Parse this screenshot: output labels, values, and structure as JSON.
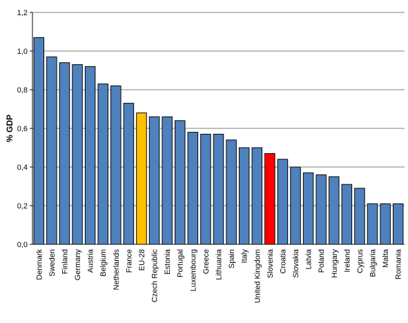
{
  "chart_data": {
    "type": "bar",
    "title": "",
    "xlabel": "",
    "ylabel": "% GDP",
    "ylim": [
      0,
      1.2
    ],
    "yticks": [
      "0,0",
      "0,2",
      "0,4",
      "0,6",
      "0,8",
      "1,0",
      "1,2"
    ],
    "grid": true,
    "categories": [
      "Denmark",
      "Sweden",
      "Finland",
      "Germany",
      "Austria",
      "Belgium",
      "Netherlands",
      "France",
      "EU-28",
      "Czech Republic",
      "Estonia",
      "Portugal",
      "Luxembourg",
      "Greece",
      "Lithuania",
      "Spain",
      "Italy",
      "United Kingdom",
      "Slovenia",
      "Croatia",
      "Slovakia",
      "Latvia",
      "Poland",
      "Hungary",
      "Ireland",
      "Cyprus",
      "Bulgaria",
      "Malta",
      "Romania"
    ],
    "values": [
      1.07,
      0.97,
      0.94,
      0.93,
      0.92,
      0.83,
      0.82,
      0.73,
      0.68,
      0.66,
      0.66,
      0.64,
      0.58,
      0.57,
      0.57,
      0.54,
      0.5,
      0.5,
      0.47,
      0.44,
      0.4,
      0.37,
      0.36,
      0.35,
      0.31,
      0.29,
      0.21,
      0.21,
      0.21
    ],
    "colors": {
      "default": "#4F81BD",
      "highlight": {
        "EU-28": "#FFC000",
        "Slovenia": "#FF0000"
      }
    }
  }
}
